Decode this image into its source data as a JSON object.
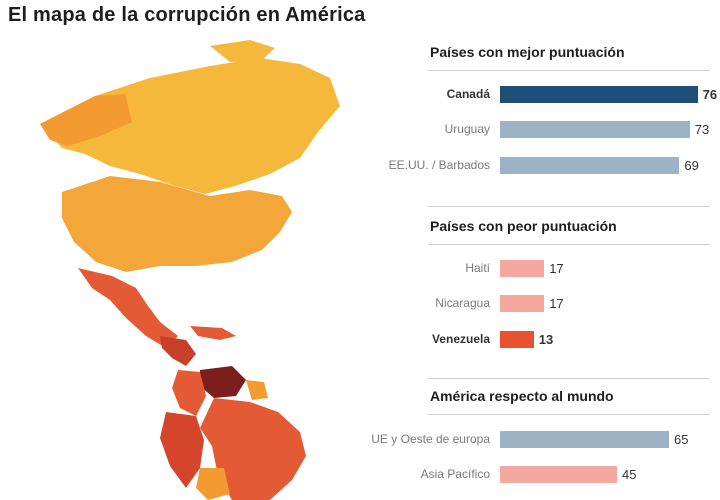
{
  "title": "El mapa de la corrupción en América",
  "colors": {
    "navy": "#1f4e79",
    "steel": "#9cb3c6",
    "salmon": "#f4a8a0",
    "red": "#e8502f",
    "map_yellow": "#f6b83a",
    "map_orange": "#f39a30",
    "map_red": "#e35a34",
    "map_darkred": "#b83022",
    "map_maroon": "#7a1e1e"
  },
  "chart_data": [
    {
      "type": "bar",
      "title": "Países con mejor puntuación",
      "categories": [
        "Canadá",
        "Uruguay",
        "EE.UU. / Barbados"
      ],
      "values": [
        76,
        73,
        69
      ],
      "highlight": [
        "Canadá"
      ],
      "bar_colors": [
        "#1f4e79",
        "#9cb3c6",
        "#9cb3c6"
      ]
    },
    {
      "type": "bar",
      "title": "Países con peor puntuación",
      "categories": [
        "Haití",
        "Nicaragua",
        "Venezuela"
      ],
      "values": [
        17,
        17,
        13
      ],
      "highlight": [
        "Venezuela"
      ],
      "bar_colors": [
        "#f4a8a0",
        "#f4a8a0",
        "#e8502f"
      ]
    },
    {
      "type": "bar",
      "title": "América respecto al mundo",
      "categories": [
        "UE y Oeste de europa",
        "Asia Pacífico"
      ],
      "values": [
        65,
        45
      ],
      "highlight": [],
      "bar_colors": [
        "#9cb3c6",
        "#f4a8a0"
      ]
    }
  ]
}
